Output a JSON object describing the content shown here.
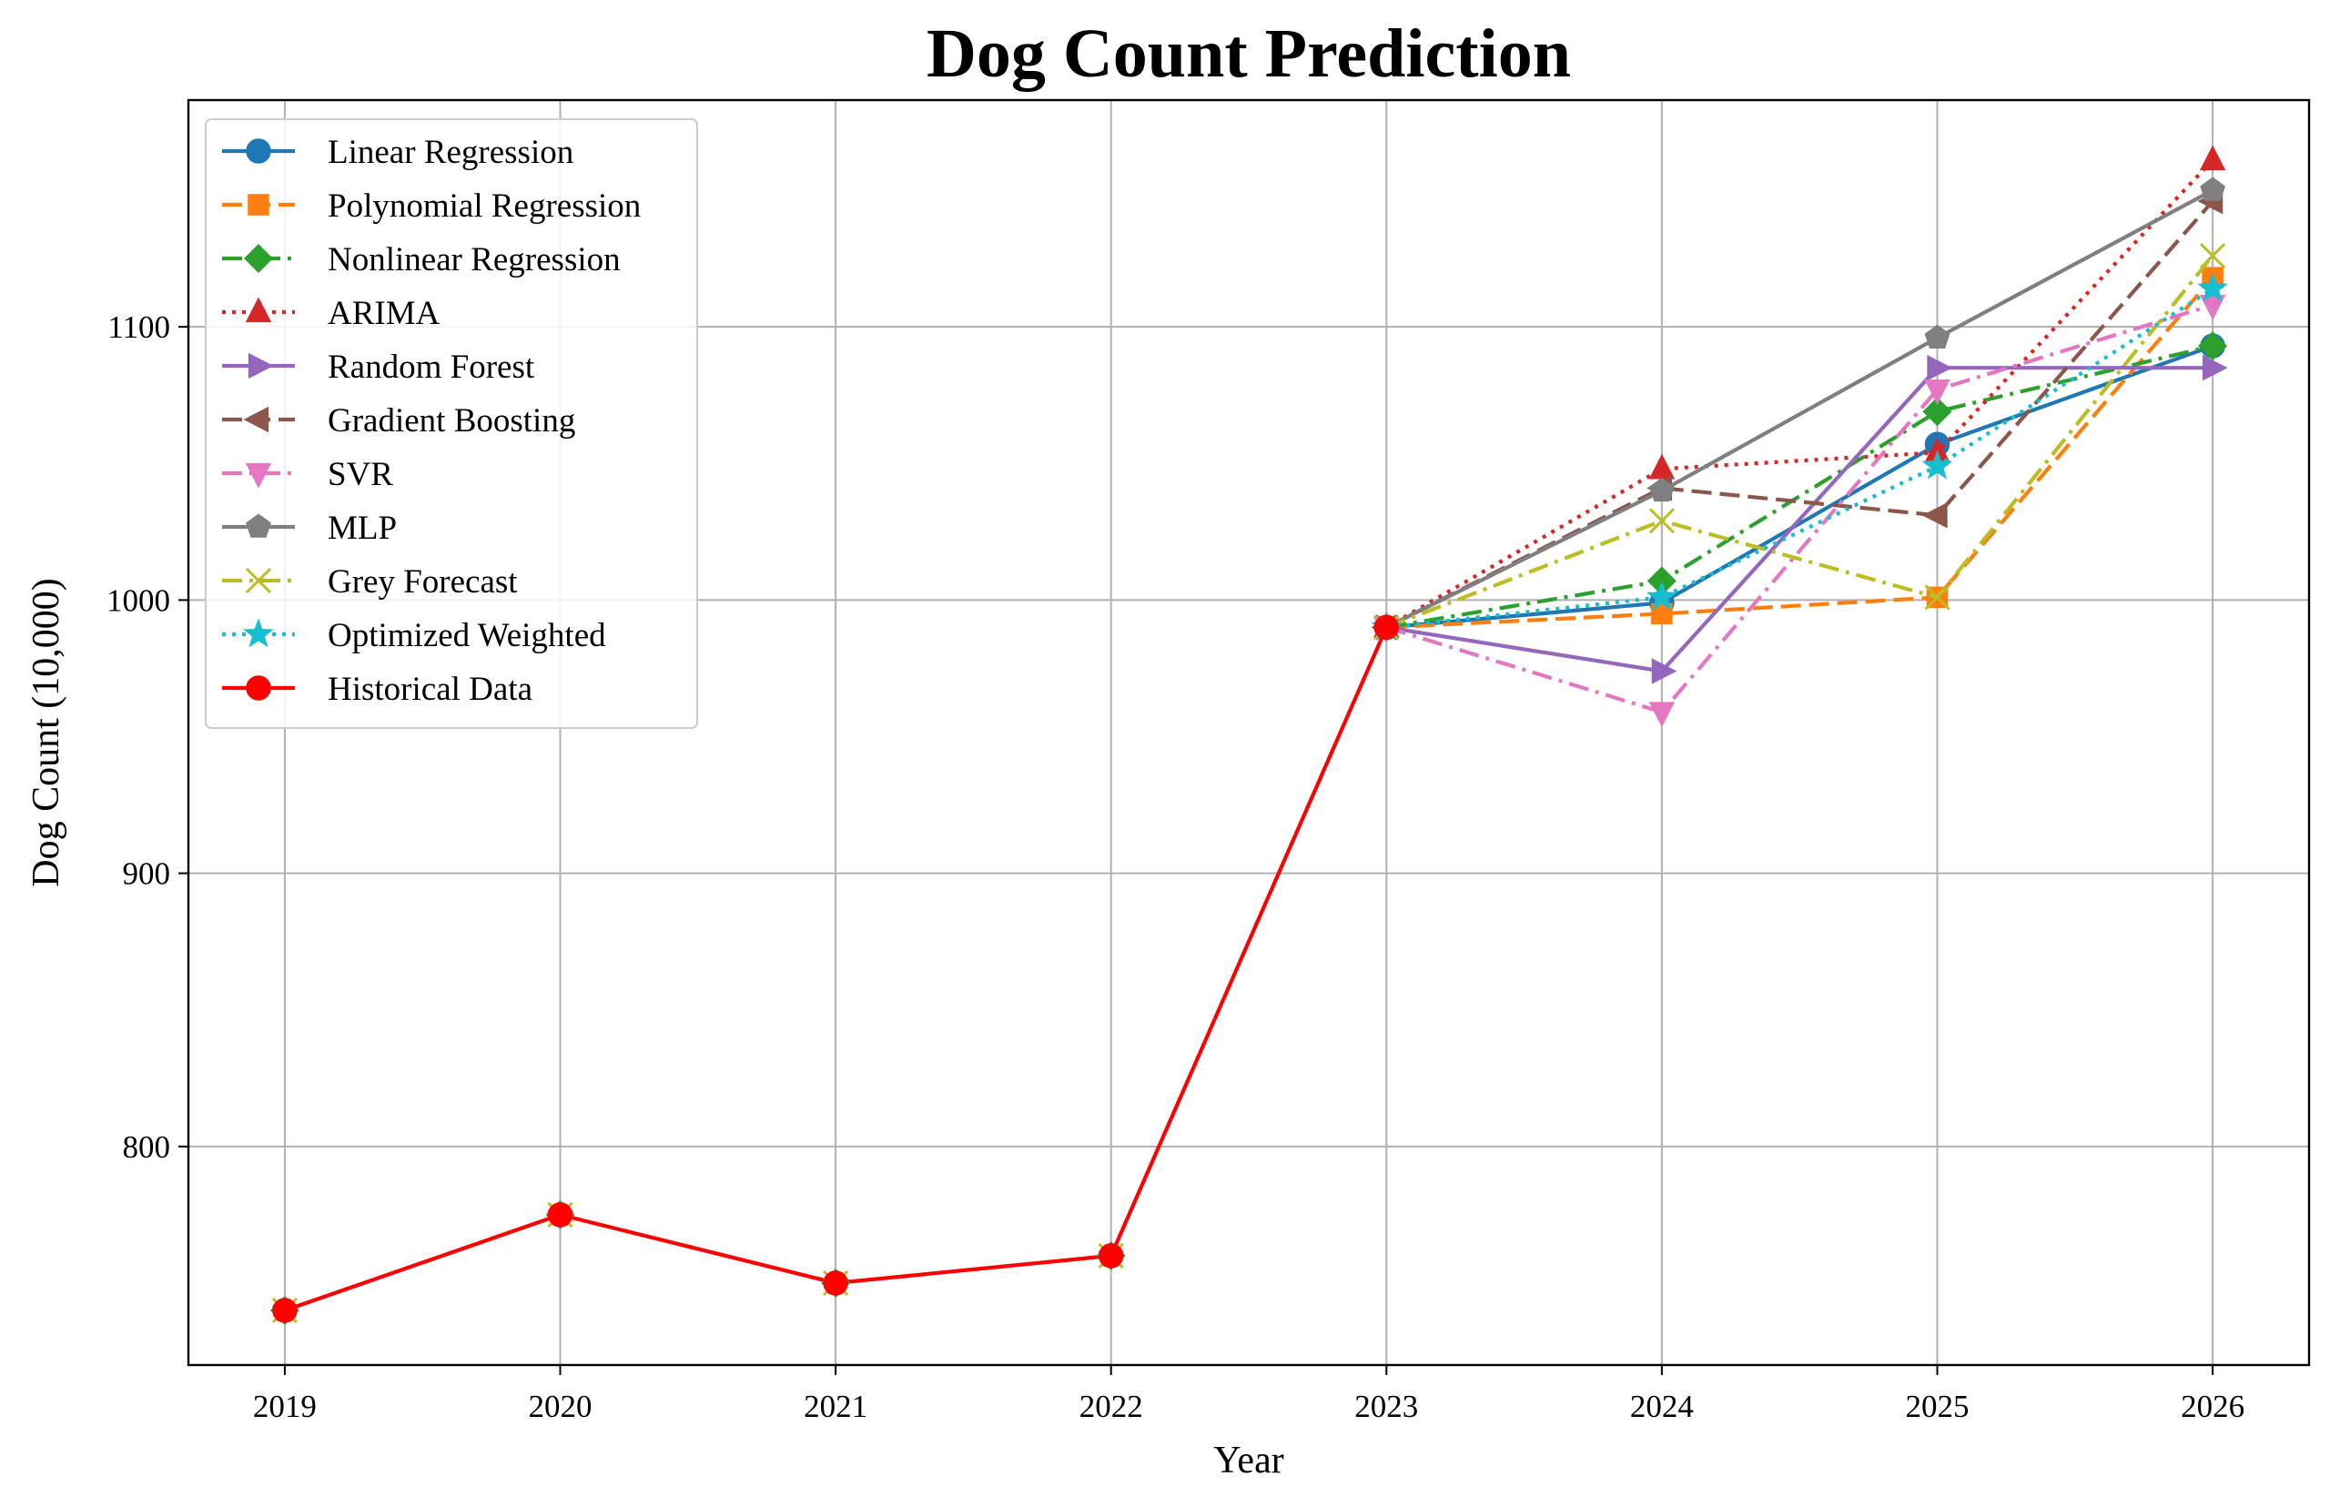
{
  "chart_data": {
    "type": "line",
    "title": "Dog Count Prediction",
    "xlabel": "Year",
    "ylabel": "Dog Count (10,000)",
    "x": [
      2019,
      2020,
      2021,
      2022,
      2023,
      2024,
      2025,
      2026
    ],
    "xlim": [
      2018.65,
      2026.35
    ],
    "ylim": [
      720,
      1183
    ],
    "yticks": [
      800,
      900,
      1000,
      1100
    ],
    "grid": true,
    "legend_position": "upper left",
    "series": [
      {
        "name": "Linear Regression",
        "x": [
          2023,
          2024,
          2025,
          2026
        ],
        "values": [
          990,
          999,
          1057,
          1093
        ],
        "color": "#1f77b4",
        "dash": "solid",
        "marker": "circle"
      },
      {
        "name": "Polynomial Regression",
        "x": [
          2023,
          2024,
          2025,
          2026
        ],
        "values": [
          990,
          995,
          1001,
          1118
        ],
        "color": "#ff7f0e",
        "dash": "dashed",
        "marker": "square"
      },
      {
        "name": "Nonlinear Regression",
        "x": [
          2023,
          2024,
          2025,
          2026
        ],
        "values": [
          990,
          1007,
          1069,
          1093
        ],
        "color": "#2ca02c",
        "dash": "dashdot",
        "marker": "diamond"
      },
      {
        "name": "ARIMA",
        "x": [
          2023,
          2024,
          2025,
          2026
        ],
        "values": [
          990,
          1048,
          1054,
          1161
        ],
        "color": "#d62728",
        "dash": "dotted",
        "marker": "triangle-up"
      },
      {
        "name": "Random Forest",
        "x": [
          2023,
          2024,
          2025,
          2026
        ],
        "values": [
          990,
          974,
          1085,
          1085
        ],
        "color": "#9467bd",
        "dash": "solid",
        "marker": "triangle-right"
      },
      {
        "name": "Gradient Boosting",
        "x": [
          2023,
          2024,
          2025,
          2026
        ],
        "values": [
          990,
          1041,
          1031,
          1146
        ],
        "color": "#8c564b",
        "dash": "dashed",
        "marker": "triangle-left"
      },
      {
        "name": "SVR",
        "x": [
          2023,
          2024,
          2025,
          2026
        ],
        "values": [
          990,
          959,
          1077,
          1108
        ],
        "color": "#e377c2",
        "dash": "dashdot",
        "marker": "triangle-down"
      },
      {
        "name": "MLP",
        "x": [
          2023,
          2024,
          2025,
          2026
        ],
        "values": [
          990,
          1040,
          1096,
          1150
        ],
        "color": "#7f7f7f",
        "dash": "solid",
        "marker": "pentagon"
      },
      {
        "name": "Grey Forecast",
        "x": [
          2023,
          2024,
          2025,
          2026
        ],
        "values": [
          990,
          1029,
          1001,
          1126
        ],
        "color": "#bcbd22",
        "dash": "dashdot",
        "marker": "x"
      },
      {
        "name": "Optimized Weighted",
        "x": [
          2023,
          2024,
          2025,
          2026
        ],
        "values": [
          990,
          1001,
          1049,
          1114
        ],
        "color": "#17becf",
        "dash": "dotted",
        "marker": "star"
      },
      {
        "name": "Historical Data",
        "x": [
          2019,
          2020,
          2021,
          2022,
          2023
        ],
        "values": [
          740,
          775,
          750,
          760,
          990
        ],
        "color": "#ff0000",
        "dash": "solid",
        "marker": "circle"
      }
    ],
    "historical_overlay_markers": [
      {
        "color": "#2ca02c",
        "marker": "diamond"
      },
      {
        "color": "#bcbd22",
        "marker": "x"
      },
      {
        "color": "#7f7f7f",
        "marker": "pentagon"
      }
    ]
  }
}
